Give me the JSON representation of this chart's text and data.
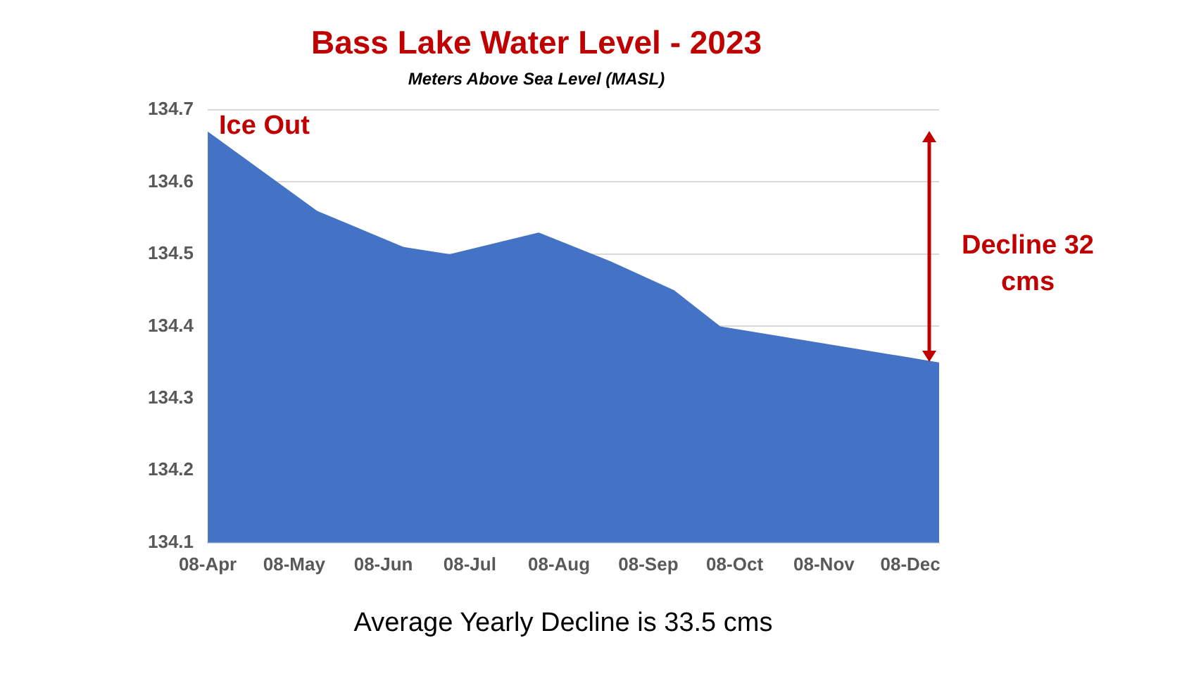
{
  "chart_data": {
    "type": "area",
    "title": "Bass Lake Water Level - 2023",
    "subtitle": "Meters Above Sea Level (MASL)",
    "x": [
      "2023-04-08",
      "2023-05-16",
      "2023-06-15",
      "2023-07-01",
      "2023-08-01",
      "2023-08-26",
      "2023-09-17",
      "2023-10-03",
      "2023-12-18"
    ],
    "series": [
      {
        "color": "#4472c4",
        "values": [
          134.67,
          134.56,
          134.51,
          134.5,
          134.53,
          134.49,
          134.45,
          134.4,
          134.35
        ]
      }
    ],
    "xlim": [
      "2023-04-08",
      "2023-12-18"
    ],
    "xticks": [
      {
        "value": "2023-04-08",
        "label": "08-Apr"
      },
      {
        "value": "2023-05-08",
        "label": "08-May"
      },
      {
        "value": "2023-06-08",
        "label": "08-Jun"
      },
      {
        "value": "2023-07-08",
        "label": "08-Jul"
      },
      {
        "value": "2023-08-08",
        "label": "08-Aug"
      },
      {
        "value": "2023-09-08",
        "label": "08-Sep"
      },
      {
        "value": "2023-10-08",
        "label": "08-Oct"
      },
      {
        "value": "2023-11-08",
        "label": "08-Nov"
      },
      {
        "value": "2023-12-08",
        "label": "08-Dec"
      }
    ],
    "ylim": [
      134.1,
      134.7
    ],
    "yticks": [
      134.1,
      134.2,
      134.3,
      134.4,
      134.5,
      134.6,
      134.7
    ],
    "grid": "y",
    "legend": false,
    "marker": "none",
    "annotations": [
      {
        "text": "Ice Out",
        "x": "2023-04-08",
        "y": 134.67
      },
      "Decline 32 cms",
      "Average Yearly Decline is 33.5 cms"
    ]
  }
}
